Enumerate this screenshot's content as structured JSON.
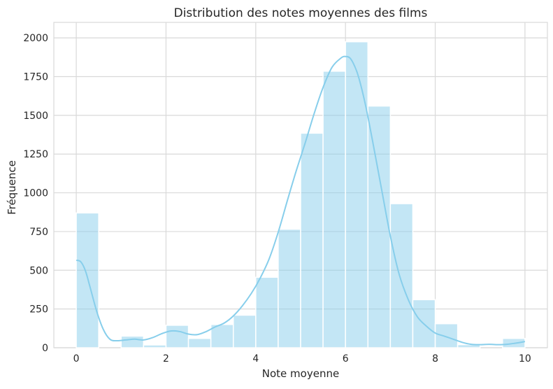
{
  "chart_data": {
    "type": "bar",
    "title": "Distribution des notes moyennes des films",
    "xlabel": "Note moyenne",
    "ylabel": "Fréquence",
    "xlim": [
      -0.5,
      10.5
    ],
    "ylim": [
      0,
      2100
    ],
    "xticks": [
      0,
      2,
      4,
      6,
      8,
      10
    ],
    "yticks": [
      0,
      250,
      500,
      750,
      1000,
      1250,
      1500,
      1750,
      2000
    ],
    "grid": true,
    "bar_color": "#87ceeb",
    "kde_color": "#87ceeb",
    "bins": [
      {
        "x0": 0.0,
        "x1": 0.5,
        "count": 870
      },
      {
        "x0": 0.5,
        "x1": 1.0,
        "count": 0
      },
      {
        "x0": 1.0,
        "x1": 1.5,
        "count": 75
      },
      {
        "x0": 1.5,
        "x1": 2.0,
        "count": 18
      },
      {
        "x0": 2.0,
        "x1": 2.5,
        "count": 145
      },
      {
        "x0": 2.5,
        "x1": 3.0,
        "count": 60
      },
      {
        "x0": 3.0,
        "x1": 3.5,
        "count": 150
      },
      {
        "x0": 3.5,
        "x1": 4.0,
        "count": 210
      },
      {
        "x0": 4.0,
        "x1": 4.5,
        "count": 455
      },
      {
        "x0": 4.5,
        "x1": 5.0,
        "count": 765
      },
      {
        "x0": 5.0,
        "x1": 5.5,
        "count": 1385
      },
      {
        "x0": 5.5,
        "x1": 6.0,
        "count": 1785
      },
      {
        "x0": 6.0,
        "x1": 6.5,
        "count": 1975
      },
      {
        "x0": 6.5,
        "x1": 7.0,
        "count": 1560
      },
      {
        "x0": 7.0,
        "x1": 7.5,
        "count": 930
      },
      {
        "x0": 7.5,
        "x1": 8.0,
        "count": 310
      },
      {
        "x0": 8.0,
        "x1": 8.5,
        "count": 155
      },
      {
        "x0": 8.5,
        "x1": 9.0,
        "count": 20
      },
      {
        "x0": 9.0,
        "x1": 9.5,
        "count": 0
      },
      {
        "x0": 9.5,
        "x1": 10.0,
        "count": 60
      }
    ],
    "kde": {
      "x": [
        0.0,
        0.1,
        0.2,
        0.3,
        0.45,
        0.6,
        0.75,
        0.9,
        1.1,
        1.3,
        1.5,
        1.7,
        1.9,
        2.1,
        2.3,
        2.5,
        2.7,
        2.9,
        3.1,
        3.3,
        3.5,
        3.7,
        3.9,
        4.1,
        4.3,
        4.5,
        4.7,
        4.9,
        5.1,
        5.3,
        5.5,
        5.7,
        5.9,
        6.0,
        6.1,
        6.2,
        6.3,
        6.45,
        6.6,
        6.8,
        7.0,
        7.2,
        7.4,
        7.6,
        7.8,
        8.0,
        8.2,
        8.4,
        8.6,
        8.8,
        9.0,
        9.2,
        9.4,
        9.6,
        9.8,
        10.0
      ],
      "y": [
        565,
        555,
        500,
        400,
        240,
        120,
        55,
        45,
        50,
        55,
        50,
        65,
        90,
        108,
        105,
        88,
        85,
        105,
        135,
        160,
        205,
        270,
        350,
        450,
        575,
        745,
        945,
        1140,
        1320,
        1510,
        1680,
        1810,
        1870,
        1880,
        1870,
        1820,
        1740,
        1560,
        1340,
        1030,
        720,
        470,
        310,
        200,
        140,
        95,
        75,
        55,
        35,
        22,
        20,
        22,
        20,
        22,
        30,
        40
      ]
    }
  }
}
